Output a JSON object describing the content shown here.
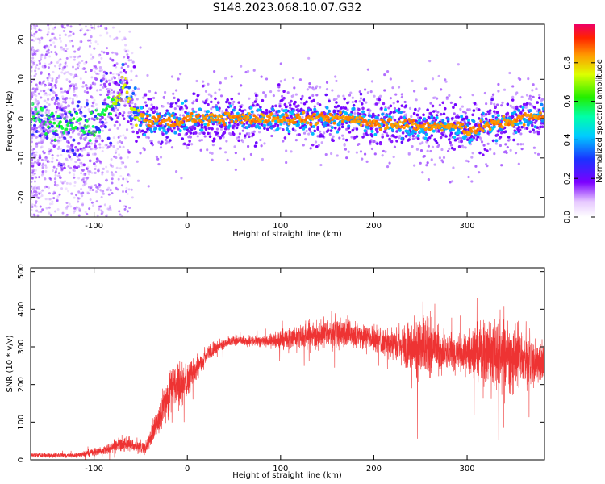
{
  "title": "S148.2023.068.10.07.G32",
  "chart_data": [
    {
      "type": "heatmap",
      "xlabel": "Height of straight line (km)",
      "ylabel": "Frequency (Hz)",
      "xlim": [
        -168,
        383
      ],
      "ylim": [
        -25,
        24
      ],
      "xticks": [
        -100,
        0,
        100,
        200,
        300
      ],
      "yticks": [
        -20,
        -10,
        0,
        10,
        20
      ],
      "colorbar": {
        "label": "Normalized spectral amplitude",
        "range": [
          0,
          1
        ],
        "ticks": [
          0.0,
          0.2,
          0.4,
          0.6,
          0.8
        ]
      },
      "ridge": {
        "x": [
          -155,
          -135,
          -120,
          -112,
          -105,
          -95,
          -85,
          -75,
          -68,
          -62,
          -55,
          -48,
          -40,
          -30,
          -20,
          0,
          20,
          50,
          80,
          100,
          120,
          150,
          180,
          200,
          220,
          250,
          270,
          290,
          300,
          320,
          340,
          360,
          383
        ],
        "frequency": [
          0,
          -2,
          -1,
          -3,
          -2,
          0,
          2,
          5,
          9,
          4,
          1,
          0,
          -1,
          0,
          -1,
          0,
          0,
          0,
          0,
          0,
          0,
          0,
          0,
          -1,
          -1,
          -2,
          -2,
          -2,
          -3,
          -2,
          -1,
          0,
          1
        ]
      }
    },
    {
      "type": "line",
      "xlabel": "Height of straight line (km)",
      "ylabel": "SNR (10 * v/v)",
      "xlim": [
        -168,
        383
      ],
      "ylim": [
        0,
        510
      ],
      "xticks": [
        -100,
        0,
        100,
        200,
        300
      ],
      "yticks": [
        0,
        100,
        200,
        300,
        400,
        500
      ],
      "color": "#ee3333",
      "envelope": {
        "x": [
          -168,
          -120,
          -90,
          -70,
          -55,
          -45,
          -35,
          -25,
          -15,
          -5,
          5,
          15,
          25,
          35,
          50,
          80,
          100,
          130,
          160,
          190,
          220,
          240,
          250,
          260,
          280,
          300,
          320,
          340,
          360,
          383
        ],
        "snr": [
          12,
          12,
          25,
          45,
          35,
          30,
          80,
          150,
          200,
          200,
          230,
          260,
          290,
          305,
          315,
          315,
          320,
          330,
          335,
          330,
          310,
          300,
          300,
          290,
          285,
          285,
          285,
          280,
          265,
          250
        ],
        "spread": [
          8,
          8,
          15,
          25,
          20,
          20,
          40,
          70,
          80,
          70,
          50,
          35,
          25,
          20,
          15,
          20,
          30,
          45,
          50,
          40,
          50,
          80,
          130,
          90,
          60,
          70,
          110,
          130,
          90,
          60
        ]
      }
    }
  ]
}
